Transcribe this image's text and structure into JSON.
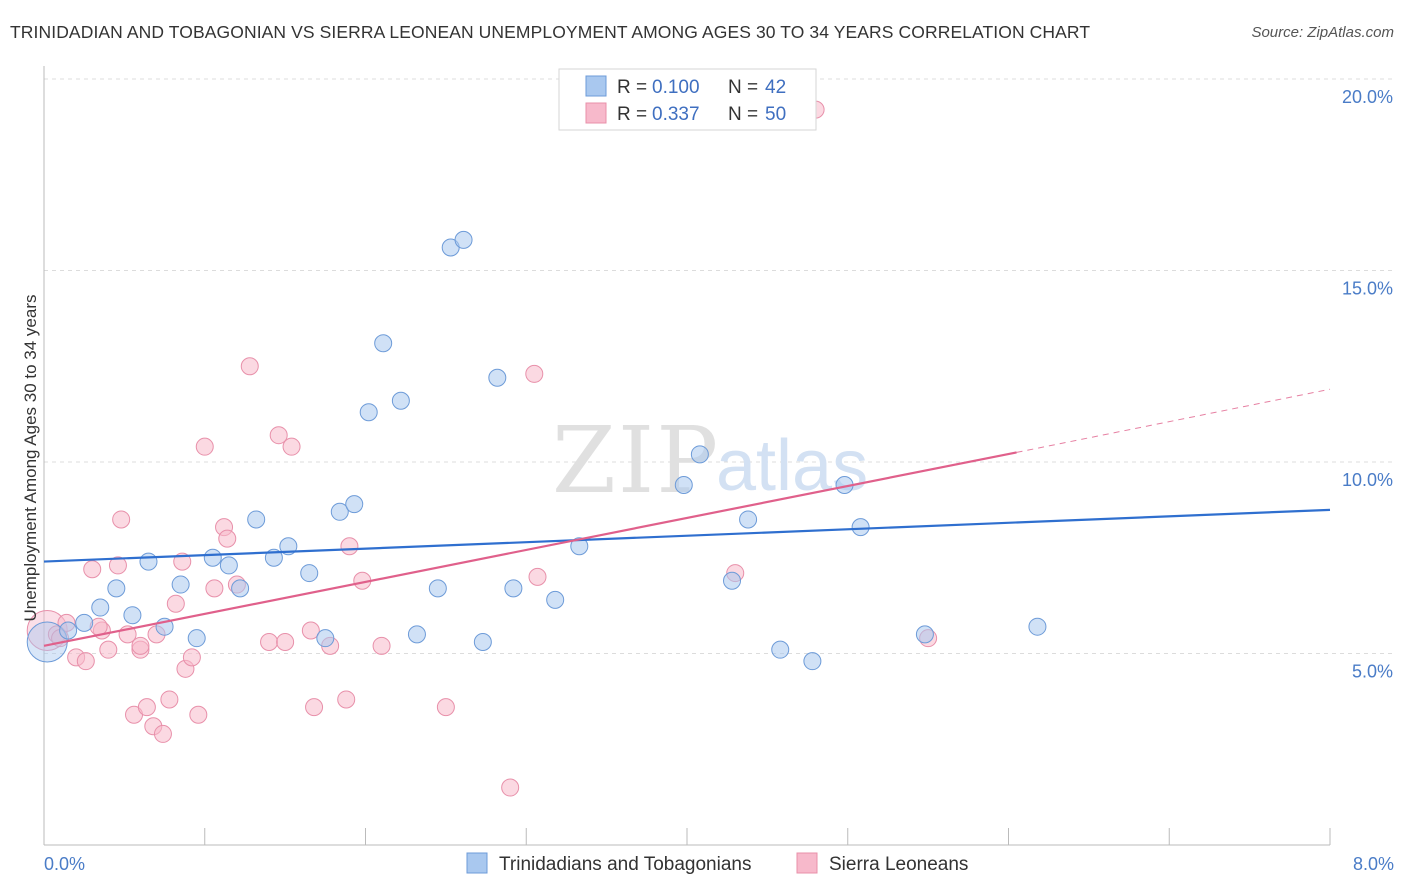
{
  "title": "TRINIDADIAN AND TOBAGONIAN VS SIERRA LEONEAN UNEMPLOYMENT AMONG AGES 30 TO 34 YEARS CORRELATION CHART",
  "source": "Source: ZipAtlas.com",
  "watermark": {
    "zip": "ZIP",
    "atlas": "atlas"
  },
  "colors": {
    "blue_fill": "#a9c8ef",
    "blue_stroke": "#6d9bd8",
    "blue_line": "#2f6fcf",
    "pink_fill": "#f7b9cb",
    "pink_stroke": "#e890aa",
    "pink_line": "#e0608b",
    "grid": "#dcdcdc",
    "tick_text": "#4a7cc7"
  },
  "legend": {
    "rows": [
      {
        "r_label": "R = ",
        "r_value": "0.100",
        "n_label": "N = ",
        "n_value": "42"
      },
      {
        "r_label": "R = ",
        "r_value": "0.337",
        "n_label": "N = ",
        "n_value": "50"
      }
    ]
  },
  "chart_data": {
    "type": "scatter",
    "xlabel": "",
    "ylabel": "Unemployment Among Ages 30 to 34 years",
    "xlim": [
      0,
      8
    ],
    "ylim": [
      0,
      20
    ],
    "x_tick_labels": [
      {
        "value": 0,
        "label": "0.0%"
      },
      {
        "value": 8,
        "label": "8.0%"
      }
    ],
    "y_tick_labels": [
      {
        "value": 5,
        "label": "5.0%"
      },
      {
        "value": 10,
        "label": "10.0%"
      },
      {
        "value": 15,
        "label": "15.0%"
      },
      {
        "value": 20,
        "label": "20.0%"
      }
    ],
    "grid": true,
    "legend_position": "top-center",
    "series": [
      {
        "name": "Trinidadians and Tobagonians",
        "color": "#a9c8ef",
        "trend": {
          "x": [
            0,
            8
          ],
          "y": [
            7.4,
            8.75
          ],
          "extends_dashed": false
        },
        "points": [
          {
            "x": 0.02,
            "y": 5.3,
            "big": true
          },
          {
            "x": 0.15,
            "y": 5.6
          },
          {
            "x": 0.25,
            "y": 5.8
          },
          {
            "x": 0.35,
            "y": 6.2
          },
          {
            "x": 0.45,
            "y": 6.7
          },
          {
            "x": 0.55,
            "y": 6.0
          },
          {
            "x": 0.65,
            "y": 7.4
          },
          {
            "x": 0.75,
            "y": 5.7
          },
          {
            "x": 0.85,
            "y": 6.8
          },
          {
            "x": 0.95,
            "y": 5.4
          },
          {
            "x": 1.05,
            "y": 7.5
          },
          {
            "x": 1.15,
            "y": 7.3
          },
          {
            "x": 1.22,
            "y": 6.7
          },
          {
            "x": 1.32,
            "y": 8.5
          },
          {
            "x": 1.43,
            "y": 7.5
          },
          {
            "x": 1.52,
            "y": 7.8
          },
          {
            "x": 1.65,
            "y": 7.1
          },
          {
            "x": 1.75,
            "y": 5.4
          },
          {
            "x": 1.84,
            "y": 8.7
          },
          {
            "x": 1.93,
            "y": 8.9
          },
          {
            "x": 2.02,
            "y": 11.3
          },
          {
            "x": 2.11,
            "y": 13.1
          },
          {
            "x": 2.22,
            "y": 11.6
          },
          {
            "x": 2.32,
            "y": 5.5
          },
          {
            "x": 2.45,
            "y": 6.7
          },
          {
            "x": 2.53,
            "y": 15.6
          },
          {
            "x": 2.61,
            "y": 15.8
          },
          {
            "x": 2.73,
            "y": 5.3
          },
          {
            "x": 2.82,
            "y": 12.2
          },
          {
            "x": 2.92,
            "y": 6.7
          },
          {
            "x": 3.18,
            "y": 6.4
          },
          {
            "x": 3.33,
            "y": 7.8
          },
          {
            "x": 3.98,
            "y": 9.4
          },
          {
            "x": 4.08,
            "y": 10.2
          },
          {
            "x": 4.28,
            "y": 6.9
          },
          {
            "x": 4.38,
            "y": 8.5
          },
          {
            "x": 4.58,
            "y": 5.1
          },
          {
            "x": 4.78,
            "y": 4.8
          },
          {
            "x": 4.98,
            "y": 9.4
          },
          {
            "x": 5.08,
            "y": 8.3
          },
          {
            "x": 5.48,
            "y": 5.5
          },
          {
            "x": 6.18,
            "y": 5.7
          }
        ]
      },
      {
        "name": "Sierra Leoneans",
        "color": "#f7b9cb",
        "trend": {
          "x": [
            0,
            6.05
          ],
          "y": [
            5.2,
            10.25
          ],
          "dash_to": [
            8,
            11.9
          ],
          "extends_dashed": true
        },
        "points": [
          {
            "x": 0.02,
            "y": 5.6,
            "big": true
          },
          {
            "x": 0.08,
            "y": 5.5
          },
          {
            "x": 0.14,
            "y": 5.8
          },
          {
            "x": 0.2,
            "y": 4.9
          },
          {
            "x": 0.26,
            "y": 4.8
          },
          {
            "x": 0.3,
            "y": 7.2
          },
          {
            "x": 0.36,
            "y": 5.6
          },
          {
            "x": 0.4,
            "y": 5.1
          },
          {
            "x": 0.46,
            "y": 7.3
          },
          {
            "x": 0.48,
            "y": 8.5
          },
          {
            "x": 0.52,
            "y": 5.5
          },
          {
            "x": 0.56,
            "y": 3.4
          },
          {
            "x": 0.6,
            "y": 5.1
          },
          {
            "x": 0.64,
            "y": 3.6
          },
          {
            "x": 0.68,
            "y": 3.1
          },
          {
            "x": 0.7,
            "y": 5.5
          },
          {
            "x": 0.74,
            "y": 2.9
          },
          {
            "x": 0.78,
            "y": 3.8
          },
          {
            "x": 0.82,
            "y": 6.3
          },
          {
            "x": 0.86,
            "y": 7.4
          },
          {
            "x": 0.88,
            "y": 4.6
          },
          {
            "x": 0.92,
            "y": 4.9
          },
          {
            "x": 0.96,
            "y": 3.4
          },
          {
            "x": 1.0,
            "y": 10.4
          },
          {
            "x": 1.06,
            "y": 6.7
          },
          {
            "x": 1.12,
            "y": 8.3
          },
          {
            "x": 1.14,
            "y": 8.0
          },
          {
            "x": 1.2,
            "y": 6.8
          },
          {
            "x": 1.28,
            "y": 12.5
          },
          {
            "x": 1.4,
            "y": 5.3
          },
          {
            "x": 1.46,
            "y": 10.7
          },
          {
            "x": 1.5,
            "y": 5.3
          },
          {
            "x": 1.54,
            "y": 10.4
          },
          {
            "x": 1.66,
            "y": 5.6
          },
          {
            "x": 1.68,
            "y": 3.6
          },
          {
            "x": 1.78,
            "y": 5.2
          },
          {
            "x": 1.88,
            "y": 3.8
          },
          {
            "x": 1.9,
            "y": 7.8
          },
          {
            "x": 1.98,
            "y": 6.9
          },
          {
            "x": 2.1,
            "y": 5.2
          },
          {
            "x": 2.5,
            "y": 3.6
          },
          {
            "x": 2.9,
            "y": 1.5
          },
          {
            "x": 3.05,
            "y": 12.3
          },
          {
            "x": 3.07,
            "y": 7.0
          },
          {
            "x": 4.3,
            "y": 7.1
          },
          {
            "x": 4.8,
            "y": 19.2
          },
          {
            "x": 5.5,
            "y": 5.4
          },
          {
            "x": 0.1,
            "y": 5.4
          },
          {
            "x": 0.34,
            "y": 5.7
          },
          {
            "x": 0.6,
            "y": 5.2
          }
        ]
      }
    ]
  }
}
